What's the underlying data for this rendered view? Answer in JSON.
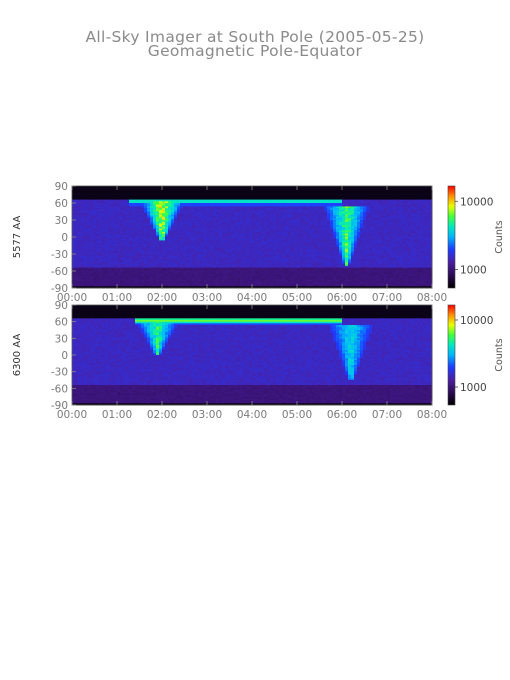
{
  "title": "All-Sky Imager at South Pole (2005-05-25)",
  "subtitle": "Geomagnetic Pole-Equator",
  "colors": {
    "background_dark": "#0c0412",
    "background_band": "#3a2370",
    "colormap": [
      "#000000",
      "#2a0a50",
      "#4b1ea0",
      "#1e3cff",
      "#00b4ff",
      "#00e8c0",
      "#40ff40",
      "#e8ff00",
      "#ff9000",
      "#ff0000"
    ]
  },
  "chart_data": [
    {
      "type": "heatmap",
      "ylabel": "5577 AA",
      "x_ticks": [
        "00:00",
        "01:00",
        "02:00",
        "03:00",
        "04:00",
        "05:00",
        "06:00",
        "07:00",
        "08:00"
      ],
      "y_ticks": [
        "90",
        "60",
        "30",
        "0",
        "-30",
        "-60",
        "-90"
      ],
      "xlim_hours": [
        0,
        8
      ],
      "ylim": [
        -90,
        90
      ],
      "colorbar": {
        "label": "Counts",
        "ticks": [
          "10000",
          "1000"
        ],
        "scale": "log"
      },
      "features": [
        {
          "name": "poleward-band",
          "start_hour": 1.3,
          "end_hour": 6.0,
          "lat": 63,
          "level": 0.62
        },
        {
          "name": "substorm-1",
          "center_hour": 2.0,
          "lat_min": -5,
          "lat_max": 64,
          "level": 0.85
        },
        {
          "name": "substorm-2",
          "center_hour": 6.1,
          "lat_min": -50,
          "lat_max": 55,
          "level": 0.7
        }
      ]
    },
    {
      "type": "heatmap",
      "ylabel": "6300 AA",
      "x_ticks": [
        "00:00",
        "01:00",
        "02:00",
        "03:00",
        "04:00",
        "05:00",
        "06:00",
        "07:00",
        "08:00"
      ],
      "y_ticks": [
        "90",
        "60",
        "30",
        "0",
        "-30",
        "-60",
        "-90"
      ],
      "xlim_hours": [
        0,
        8
      ],
      "ylim": [
        -90,
        90
      ],
      "colorbar": {
        "label": "Counts",
        "ticks": [
          "10000",
          "1000"
        ],
        "scale": "log"
      },
      "features": [
        {
          "name": "poleward-band",
          "start_hour": 1.4,
          "end_hour": 6.0,
          "lat": 62,
          "level": 0.72
        },
        {
          "name": "substorm-1",
          "center_hour": 1.9,
          "lat_min": 0,
          "lat_max": 64,
          "level": 0.66
        },
        {
          "name": "substorm-2",
          "center_hour": 6.2,
          "lat_min": -45,
          "lat_max": 55,
          "level": 0.55
        }
      ]
    }
  ]
}
